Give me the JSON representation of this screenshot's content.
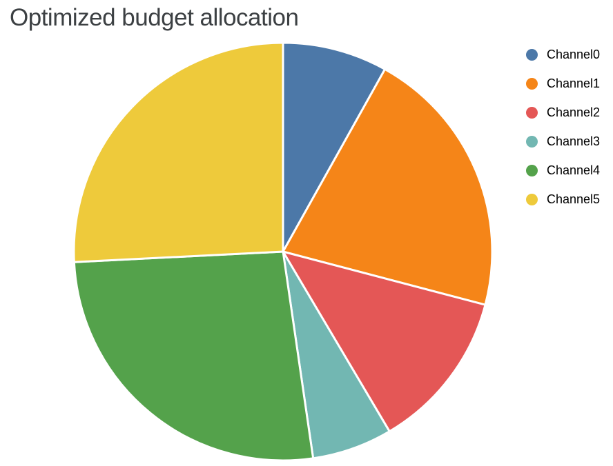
{
  "chart_data": {
    "type": "pie",
    "title": "Optimized budget allocation",
    "labels": [
      "Channel0",
      "Channel1",
      "Channel2",
      "Channel3",
      "Channel4",
      "Channel5"
    ],
    "values": [
      8.1,
      21.0,
      12.4,
      6.2,
      26.5,
      25.8
    ],
    "value_format": "percent_of_total",
    "colors": [
      "#4C78A8",
      "#F58518",
      "#E45756",
      "#72B7B2",
      "#54A24B",
      "#EECA3B"
    ],
    "start_angle_deg": 0,
    "direction": "clockwise",
    "legend_position": "right",
    "title_color": "#3C4043",
    "background_color": "#FFFFFF"
  }
}
